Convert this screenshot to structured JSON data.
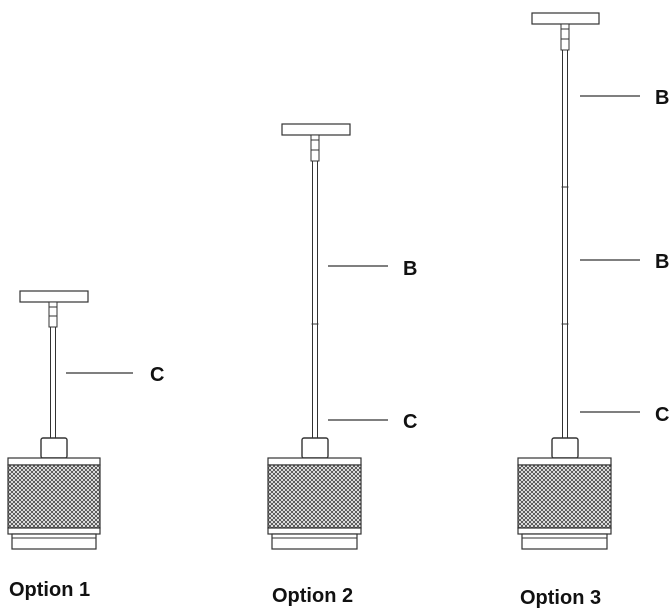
{
  "colors": {
    "line": "#333333",
    "text": "#111111",
    "mesh": "#444444",
    "background": "#ffffff"
  },
  "options": [
    {
      "label": "Option 1",
      "callouts": [
        "C"
      ]
    },
    {
      "label": "Option 2",
      "callouts": [
        "B",
        "C"
      ]
    },
    {
      "label": "Option 3",
      "callouts": [
        "B",
        "B",
        "C"
      ]
    }
  ]
}
